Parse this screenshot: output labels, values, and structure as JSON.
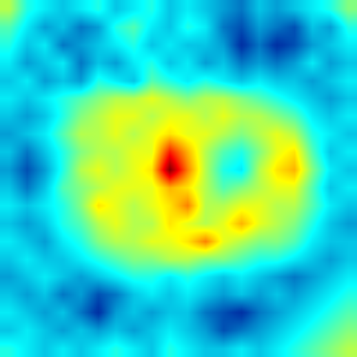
{
  "chart_data": {
    "type": "heatmap",
    "tick_labels": false,
    "zlim": [
      0,
      1
    ],
    "z": [
      [
        0.55,
        0.4,
        0.35,
        0.3,
        0.35,
        0.4,
        0.3,
        0.35,
        0.4,
        0.3,
        0.35,
        0.3,
        0.25,
        0.2,
        0.3,
        0.25,
        0.3,
        0.35,
        0.4,
        0.5
      ],
      [
        0.45,
        0.35,
        0.25,
        0.3,
        0.2,
        0.25,
        0.4,
        0.45,
        0.35,
        0.3,
        0.4,
        0.35,
        0.2,
        0.15,
        0.25,
        0.2,
        0.15,
        0.3,
        0.25,
        0.4
      ],
      [
        0.4,
        0.3,
        0.35,
        0.2,
        0.25,
        0.3,
        0.35,
        0.4,
        0.3,
        0.35,
        0.3,
        0.3,
        0.25,
        0.1,
        0.2,
        0.1,
        0.15,
        0.25,
        0.3,
        0.35
      ],
      [
        0.35,
        0.25,
        0.3,
        0.35,
        0.2,
        0.3,
        0.25,
        0.35,
        0.4,
        0.3,
        0.35,
        0.25,
        0.3,
        0.2,
        0.25,
        0.2,
        0.25,
        0.35,
        0.25,
        0.3
      ],
      [
        0.3,
        0.35,
        0.25,
        0.3,
        0.25,
        0.4,
        0.35,
        0.3,
        0.45,
        0.4,
        0.35,
        0.4,
        0.35,
        0.3,
        0.35,
        0.3,
        0.3,
        0.25,
        0.3,
        0.35
      ],
      [
        0.35,
        0.3,
        0.35,
        0.4,
        0.45,
        0.5,
        0.55,
        0.55,
        0.6,
        0.55,
        0.5,
        0.55,
        0.55,
        0.5,
        0.45,
        0.4,
        0.35,
        0.3,
        0.25,
        0.3
      ],
      [
        0.3,
        0.25,
        0.3,
        0.4,
        0.5,
        0.55,
        0.6,
        0.6,
        0.55,
        0.6,
        0.6,
        0.55,
        0.6,
        0.55,
        0.55,
        0.5,
        0.45,
        0.35,
        0.3,
        0.35
      ],
      [
        0.25,
        0.3,
        0.35,
        0.45,
        0.55,
        0.55,
        0.6,
        0.55,
        0.6,
        0.65,
        0.6,
        0.6,
        0.55,
        0.5,
        0.55,
        0.6,
        0.55,
        0.4,
        0.35,
        0.3
      ],
      [
        0.3,
        0.2,
        0.3,
        0.4,
        0.5,
        0.55,
        0.55,
        0.6,
        0.6,
        0.85,
        0.7,
        0.55,
        0.45,
        0.4,
        0.5,
        0.6,
        0.65,
        0.45,
        0.3,
        0.35
      ],
      [
        0.25,
        0.15,
        0.25,
        0.4,
        0.55,
        0.6,
        0.55,
        0.6,
        0.65,
        1.0,
        0.75,
        0.55,
        0.4,
        0.35,
        0.55,
        0.65,
        0.7,
        0.5,
        0.35,
        0.3
      ],
      [
        0.3,
        0.2,
        0.3,
        0.45,
        0.5,
        0.55,
        0.6,
        0.6,
        0.6,
        0.7,
        0.65,
        0.55,
        0.45,
        0.5,
        0.55,
        0.6,
        0.6,
        0.45,
        0.3,
        0.35
      ],
      [
        0.35,
        0.3,
        0.35,
        0.4,
        0.5,
        0.65,
        0.6,
        0.55,
        0.6,
        0.65,
        0.75,
        0.55,
        0.55,
        0.6,
        0.6,
        0.55,
        0.55,
        0.45,
        0.35,
        0.3
      ],
      [
        0.3,
        0.25,
        0.3,
        0.4,
        0.45,
        0.55,
        0.6,
        0.55,
        0.55,
        0.65,
        0.6,
        0.55,
        0.6,
        0.7,
        0.6,
        0.55,
        0.5,
        0.4,
        0.3,
        0.25
      ],
      [
        0.35,
        0.3,
        0.25,
        0.35,
        0.4,
        0.5,
        0.55,
        0.55,
        0.6,
        0.6,
        0.65,
        0.75,
        0.6,
        0.55,
        0.5,
        0.5,
        0.45,
        0.35,
        0.3,
        0.3
      ],
      [
        0.3,
        0.35,
        0.3,
        0.3,
        0.35,
        0.4,
        0.45,
        0.5,
        0.5,
        0.55,
        0.55,
        0.5,
        0.5,
        0.45,
        0.4,
        0.4,
        0.35,
        0.3,
        0.25,
        0.3
      ],
      [
        0.25,
        0.3,
        0.35,
        0.3,
        0.25,
        0.3,
        0.35,
        0.4,
        0.4,
        0.35,
        0.4,
        0.35,
        0.3,
        0.35,
        0.3,
        0.25,
        0.2,
        0.25,
        0.3,
        0.35
      ],
      [
        0.3,
        0.25,
        0.3,
        0.2,
        0.25,
        0.15,
        0.2,
        0.3,
        0.35,
        0.3,
        0.35,
        0.3,
        0.25,
        0.3,
        0.25,
        0.3,
        0.25,
        0.3,
        0.35,
        0.4
      ],
      [
        0.35,
        0.3,
        0.25,
        0.3,
        0.2,
        0.1,
        0.25,
        0.3,
        0.25,
        0.3,
        0.3,
        0.2,
        0.15,
        0.1,
        0.2,
        0.25,
        0.3,
        0.35,
        0.4,
        0.45
      ],
      [
        0.3,
        0.35,
        0.3,
        0.25,
        0.3,
        0.25,
        0.3,
        0.25,
        0.3,
        0.35,
        0.3,
        0.25,
        0.15,
        0.2,
        0.25,
        0.3,
        0.35,
        0.4,
        0.45,
        0.5
      ],
      [
        0.4,
        0.35,
        0.3,
        0.35,
        0.3,
        0.35,
        0.4,
        0.35,
        0.3,
        0.4,
        0.35,
        0.3,
        0.3,
        0.35,
        0.3,
        0.35,
        0.4,
        0.45,
        0.5,
        0.55
      ]
    ]
  }
}
